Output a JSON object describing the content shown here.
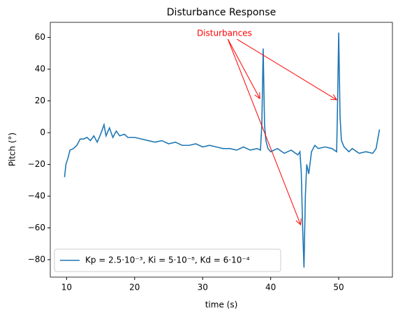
{
  "chart_data": {
    "type": "line",
    "title": "Disturbance Response",
    "xlabel": "time (s)",
    "ylabel": "Pitch (°)",
    "x": [
      9.7,
      9.9,
      10.2,
      10.5,
      11,
      11.5,
      12,
      12.5,
      13,
      13.5,
      14,
      14.5,
      15,
      15.5,
      15.8,
      16.3,
      16.8,
      17.3,
      17.8,
      18.5,
      19,
      20,
      21,
      22,
      23,
      24,
      25,
      26,
      27,
      28,
      29,
      30,
      31,
      32,
      33,
      34,
      35,
      36,
      37,
      38,
      38.5,
      38.7,
      38.9,
      39.1,
      39.3,
      39.6,
      40,
      41,
      42,
      43,
      44,
      44.3,
      44.5,
      44.7,
      44.9,
      45.1,
      45.3,
      45.6,
      46,
      46.5,
      47,
      48,
      49,
      49.7,
      49.8,
      50,
      50.2,
      50.4,
      50.8,
      51.5,
      52,
      53,
      54,
      55,
      55.5,
      56
    ],
    "series": [
      {
        "name": "Kp = 2.5·10⁻³, Ki = 5·10⁻⁸, Kd = 6·10⁻⁴",
        "color": "#1f77b4",
        "values": [
          -28,
          -20,
          -16,
          -11,
          -10,
          -8,
          -4,
          -4,
          -3,
          -5,
          -2,
          -6,
          -1,
          5,
          -2,
          3,
          -3,
          1,
          -2,
          -1,
          -3,
          -3,
          -4,
          -5,
          -6,
          -5,
          -7,
          -6,
          -8,
          -8,
          -7,
          -9,
          -8,
          -9,
          -10,
          -10,
          -11,
          -9,
          -11,
          -10,
          -11,
          5,
          53,
          5,
          -5,
          -10,
          -12,
          -10,
          -13,
          -11,
          -14,
          -12,
          -25,
          -60,
          -85,
          -40,
          -20,
          -26,
          -12,
          -8,
          -10,
          -9,
          -10,
          -12,
          10,
          63,
          10,
          -5,
          -9,
          -12,
          -10,
          -13,
          -12,
          -13,
          -10,
          2
        ]
      }
    ],
    "xlim": [
      7.6,
      57.9
    ],
    "ylim": [
      -91,
      69.5
    ],
    "xticks": [
      10,
      20,
      30,
      40,
      50
    ],
    "yticks": [
      {
        "value": -80,
        "label": "−80"
      },
      {
        "value": -60,
        "label": "−60"
      },
      {
        "value": -40,
        "label": "−40"
      },
      {
        "value": -20,
        "label": "−20"
      },
      0,
      20,
      40,
      60
    ],
    "legend": "lower left",
    "annotation": {
      "text": "Disturbances",
      "color": "red",
      "x": 33.2,
      "y": 62.4,
      "targets": [
        [
          38.4,
          21.5
        ],
        [
          49.7,
          20.7
        ],
        [
          44.4,
          -58
        ]
      ]
    }
  }
}
